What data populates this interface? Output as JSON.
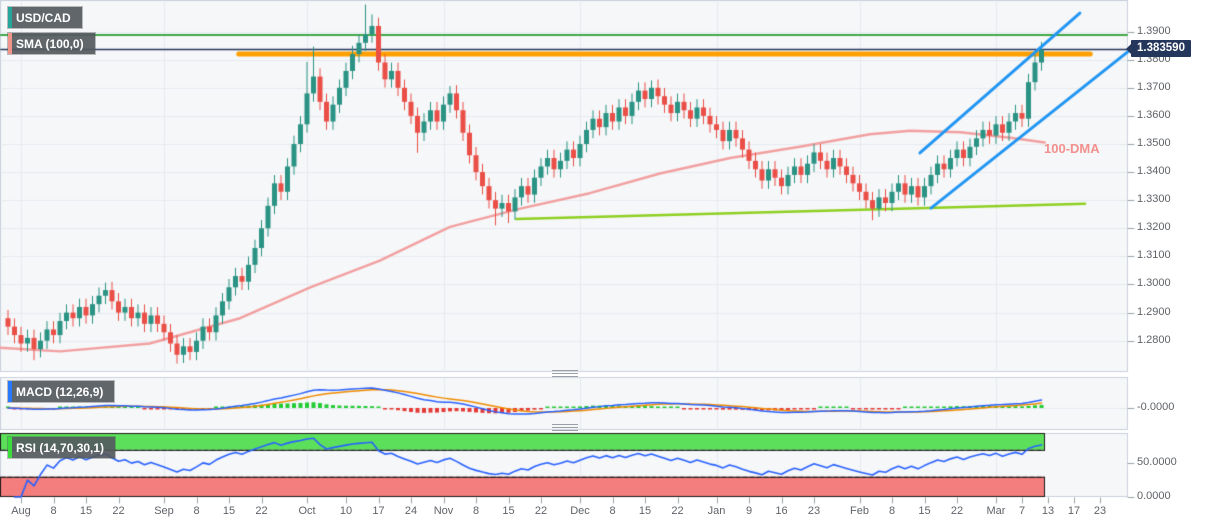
{
  "app": {
    "symbol": "USD/CAD",
    "sma_legend": "SMA (100,0)",
    "macd_legend": "MACD (12,26,9)",
    "rsi_legend": "RSI (14,70,30,1)",
    "dma_annotation": "100-DMA",
    "price_tag": "1.383590"
  },
  "axes": {
    "price_ticks": [
      "1.3900",
      "1.3800",
      "1.3700",
      "1.3600",
      "1.3500",
      "1.3400",
      "1.3300",
      "1.3200",
      "1.3100",
      "1.3000",
      "1.2900",
      "1.2800"
    ],
    "macd_ticks": [
      "-0.0000"
    ],
    "rsi_ticks": [
      "50.0000",
      "0.0000"
    ],
    "x_ticks": [
      {
        "label": "Aug",
        "i": 2
      },
      {
        "label": "8",
        "i": 7
      },
      {
        "label": "15",
        "i": 12
      },
      {
        "label": "22",
        "i": 17
      },
      {
        "label": "Sep",
        "i": 24
      },
      {
        "label": "8",
        "i": 29
      },
      {
        "label": "15",
        "i": 34
      },
      {
        "label": "22",
        "i": 39
      },
      {
        "label": "Oct",
        "i": 46
      },
      {
        "label": "10",
        "i": 52
      },
      {
        "label": "17",
        "i": 57
      },
      {
        "label": "24",
        "i": 62
      },
      {
        "label": "Nov",
        "i": 67
      },
      {
        "label": "8",
        "i": 72
      },
      {
        "label": "15",
        "i": 77
      },
      {
        "label": "22",
        "i": 82
      },
      {
        "label": "Dec",
        "i": 88
      },
      {
        "label": "8",
        "i": 93
      },
      {
        "label": "15",
        "i": 98
      },
      {
        "label": "22",
        "i": 103
      },
      {
        "label": "Jan",
        "i": 109
      },
      {
        "label": "9",
        "i": 114
      },
      {
        "label": "16",
        "i": 119
      },
      {
        "label": "23",
        "i": 124
      },
      {
        "label": "Feb",
        "i": 131
      },
      {
        "label": "8",
        "i": 136
      },
      {
        "label": "15",
        "i": 141
      },
      {
        "label": "22",
        "i": 146
      },
      {
        "label": "Mar",
        "i": 152
      },
      {
        "label": "7",
        "i": 156
      },
      {
        "label": "13",
        "i": 160
      },
      {
        "label": "17",
        "i": 164
      },
      {
        "label": "23",
        "i": 168
      }
    ],
    "month_grid_i": [
      2,
      24,
      46,
      67,
      88,
      109,
      131,
      152
    ]
  },
  "chart_data": {
    "type": "candlestick",
    "title": "USD/CAD daily with SMA(100), MACD(12,26,9), RSI(14,70,30)",
    "ylim": [
      1.26886,
      1.40124
    ],
    "first_open": 1.288,
    "default_wick": 0.0028,
    "closes": [
      1.285,
      1.282,
      1.279,
      1.281,
      1.277,
      1.28,
      1.284,
      1.282,
      1.287,
      1.29,
      1.288,
      1.292,
      1.289,
      1.293,
      1.296,
      1.298,
      1.294,
      1.29,
      1.292,
      1.288,
      1.29,
      1.286,
      1.289,
      1.286,
      1.283,
      1.279,
      1.275,
      1.278,
      1.276,
      1.28,
      1.285,
      1.283,
      1.289,
      1.294,
      1.299,
      1.303,
      1.301,
      1.307,
      1.313,
      1.32,
      1.328,
      1.336,
      1.333,
      1.342,
      1.35,
      1.357,
      1.368,
      1.374,
      1.365,
      1.358,
      1.364,
      1.37,
      1.376,
      1.382,
      1.386,
      1.389,
      1.392,
      1.379,
      1.373,
      1.376,
      1.37,
      1.365,
      1.36,
      1.354,
      1.358,
      1.362,
      1.358,
      1.364,
      1.368,
      1.362,
      1.354,
      1.346,
      1.34,
      1.335,
      1.33,
      1.327,
      1.329,
      1.326,
      1.331,
      1.335,
      1.332,
      1.338,
      1.342,
      1.345,
      1.341,
      1.344,
      1.348,
      1.345,
      1.35,
      1.355,
      1.359,
      1.356,
      1.361,
      1.358,
      1.363,
      1.36,
      1.365,
      1.369,
      1.366,
      1.37,
      1.367,
      1.364,
      1.361,
      1.365,
      1.362,
      1.359,
      1.363,
      1.36,
      1.357,
      1.355,
      1.351,
      1.355,
      1.352,
      1.348,
      1.344,
      1.341,
      1.337,
      1.341,
      1.338,
      1.335,
      1.339,
      1.342,
      1.339,
      1.343,
      1.347,
      1.344,
      1.341,
      1.345,
      1.342,
      1.339,
      1.336,
      1.333,
      1.33,
      1.327,
      1.331,
      1.329,
      1.333,
      1.336,
      1.332,
      1.335,
      1.331,
      1.335,
      1.339,
      1.343,
      1.341,
      1.345,
      1.348,
      1.345,
      1.349,
      1.352,
      1.355,
      1.353,
      1.357,
      1.354,
      1.358,
      1.361,
      1.359,
      1.372,
      1.379,
      1.3836
    ],
    "special_candles": {
      "4": {
        "low": 1.2732
      },
      "15": {
        "high": 1.3005
      },
      "26": {
        "low": 1.272
      },
      "46": {
        "high": 1.379
      },
      "47": {
        "high": 1.3845
      },
      "55": {
        "high": 1.3995
      },
      "56": {
        "high": 1.396
      },
      "63": {
        "low": 1.347
      },
      "68": {
        "high": 1.3705
      },
      "75": {
        "low": 1.3212
      },
      "77": {
        "low": 1.322
      },
      "99": {
        "high": 1.3725
      },
      "133": {
        "low": 1.323
      },
      "159": {
        "high": 1.3862
      }
    },
    "overlays": {
      "sma100_points": [
        [
          -1.2,
          1.2775
        ],
        [
          8,
          1.2762
        ],
        [
          21.8,
          1.279
        ],
        [
          35.7,
          1.288
        ],
        [
          46.5,
          1.299
        ],
        [
          57.2,
          1.3085
        ],
        [
          68,
          1.3205
        ],
        [
          78.8,
          1.327
        ],
        [
          89.5,
          1.3325
        ],
        [
          100.3,
          1.3395
        ],
        [
          111.1,
          1.345
        ],
        [
          121.8,
          1.349
        ],
        [
          132.6,
          1.3535
        ],
        [
          138.8,
          1.3547
        ],
        [
          146.5,
          1.3542
        ],
        [
          154.2,
          1.3522
        ],
        [
          159.5,
          1.3505
        ]
      ],
      "green_hline": 1.3888,
      "current_price_line": 1.38359,
      "orange_zone": {
        "price": 1.382,
        "from_i": 35.5,
        "to_i": 166.5
      },
      "olive_trendline": {
        "from": [
          78.2,
          1.3233
        ],
        "to": [
          165.7,
          1.3287
        ]
      },
      "blue_channel": {
        "upper": [
          [
            140.3,
            1.3468
          ],
          [
            164.9,
            1.3966
          ]
        ],
        "lower": [
          [
            142.0,
            1.3272
          ],
          [
            172.6,
            1.3834
          ]
        ]
      }
    },
    "indicators": {
      "macd": {
        "fast": 12,
        "slow": 26,
        "signal": 9
      },
      "rsi": {
        "period": 14,
        "overbought": 70,
        "oversold": 30
      }
    }
  },
  "colors": {
    "plot_bg": "#f6f7f9",
    "grid": "#e7eaef",
    "panel_border": "#c9d0dc",
    "axis_text": "#5f6368",
    "candle_up": "#2a9383",
    "candle_down": "#ea4f47",
    "sma_pink": "#f2a0a0",
    "olive": "#8ed021",
    "channel_blue": "#2196f3",
    "orange_zone": "#ffa000",
    "green_line": "#3ea746",
    "price_line": "#24365c",
    "tag_bg": "#24365c",
    "macd_line": "#2962ff",
    "macd_signal": "#f08c00",
    "hist_up": "#22cc33",
    "hist_down": "#e53935",
    "rsi_line": "#2962ff",
    "band_green": "#5ce05c",
    "band_red": "#f47d7d",
    "band_border": "#1a1a1a",
    "accent_symbol": "#26a69a",
    "accent_sma": "#f1948a",
    "accent_macd": "#2979ff",
    "accent_rsi": "#3ddc3d"
  }
}
